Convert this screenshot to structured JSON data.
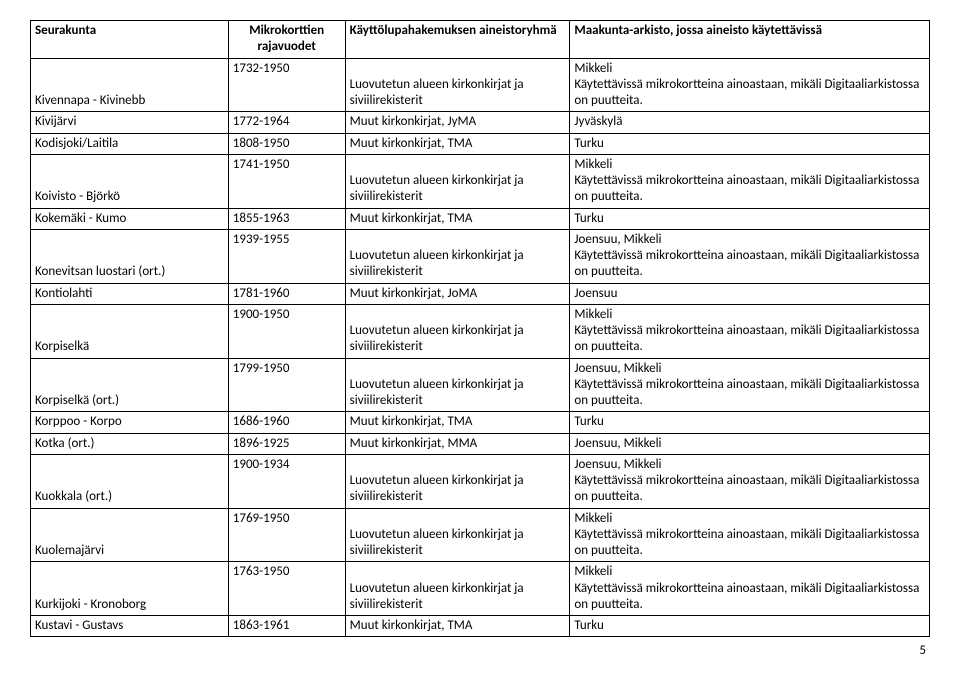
{
  "table": {
    "header": {
      "c1": "Seurakunta",
      "c2": "Mikrokorttien rajavuodet",
      "c3": "Käyttölupahakemuksen aineistoryhmä",
      "c4": "Maakunta-arkisto, jossa aineisto käytettävissä"
    },
    "rows": [
      {
        "c1": "Kivennapa - Kivinebb",
        "c2": "1732-1950",
        "c3": "Luovutetun alueen kirkonkirjat ja siviilirekisterit",
        "c4": "Mikkeli\nKäytettävissä mikrokortteina ainoastaan, mikäli Digitaaliarkistossa on puutteita."
      },
      {
        "c1": "Kivijärvi",
        "c2": "1772-1964",
        "c3": "Muut kirkonkirjat, JyMA",
        "c4": "Jyväskylä"
      },
      {
        "c1": "Kodisjoki/Laitila",
        "c2": "1808-1950",
        "c3": "Muut kirkonkirjat, TMA",
        "c4": "Turku"
      },
      {
        "c1": "Koivisto - Björkö",
        "c2": "1741-1950",
        "c3": "Luovutetun alueen kirkonkirjat ja siviilirekisterit",
        "c4": "Mikkeli\nKäytettävissä mikrokortteina ainoastaan, mikäli Digitaaliarkistossa on puutteita."
      },
      {
        "c1": "Kokemäki  - Kumo",
        "c2": "1855-1963",
        "c3": "Muut kirkonkirjat, TMA",
        "c4": "Turku"
      },
      {
        "c1": "Konevitsan luostari (ort.)",
        "c2": "1939-1955",
        "c3": "Luovutetun alueen kirkonkirjat ja siviilirekisterit",
        "c4": "Joensuu, Mikkeli\nKäytettävissä mikrokortteina ainoastaan, mikäli Digitaaliarkistossa on puutteita."
      },
      {
        "c1": "Kontiolahti",
        "c2": "1781-1960",
        "c3": "Muut kirkonkirjat, JoMA",
        "c4": "Joensuu"
      },
      {
        "c1": "Korpiselkä",
        "c2": "1900-1950",
        "c3": "Luovutetun alueen kirkonkirjat ja siviilirekisterit",
        "c4": "Mikkeli\nKäytettävissä mikrokortteina ainoastaan, mikäli Digitaaliarkistossa on puutteita."
      },
      {
        "c1": "Korpiselkä (ort.)",
        "c2": "1799-1950",
        "c3": "Luovutetun alueen kirkonkirjat ja siviilirekisterit",
        "c4": "Joensuu, Mikkeli\nKäytettävissä mikrokortteina ainoastaan, mikäli Digitaaliarkistossa on puutteita."
      },
      {
        "c1": "Korppoo - Korpo",
        "c2": "1686-1960",
        "c3": "Muut kirkonkirjat, TMA",
        "c4": "Turku"
      },
      {
        "c1": "Kotka (ort.)",
        "c2": "1896-1925",
        "c3": "Muut kirkonkirjat, MMA",
        "c4": "Joensuu, Mikkeli"
      },
      {
        "c1": "Kuokkala (ort.)",
        "c2": "1900-1934",
        "c3": "Luovutetun alueen kirkonkirjat ja siviilirekisterit",
        "c4": "Joensuu, Mikkeli\nKäytettävissä mikrokortteina ainoastaan, mikäli Digitaaliarkistossa on puutteita."
      },
      {
        "c1": "Kuolemajärvi",
        "c2": "1769-1950",
        "c3": "Luovutetun alueen kirkonkirjat ja siviilirekisterit",
        "c4": "Mikkeli\nKäytettävissä mikrokortteina ainoastaan, mikäli Digitaaliarkistossa on puutteita."
      },
      {
        "c1": "Kurkijoki - Kronoborg",
        "c2": "1763-1950",
        "c3": "Luovutetun alueen kirkonkirjat ja siviilirekisterit",
        "c4": "Mikkeli\nKäytettävissä mikrokortteina ainoastaan, mikäli Digitaaliarkistossa on puutteita."
      },
      {
        "c1": "Kustavi  - Gustavs",
        "c2": "1863-1961",
        "c3": "Muut kirkonkirjat, TMA",
        "c4": "Turku"
      }
    ]
  },
  "page_number": "5"
}
